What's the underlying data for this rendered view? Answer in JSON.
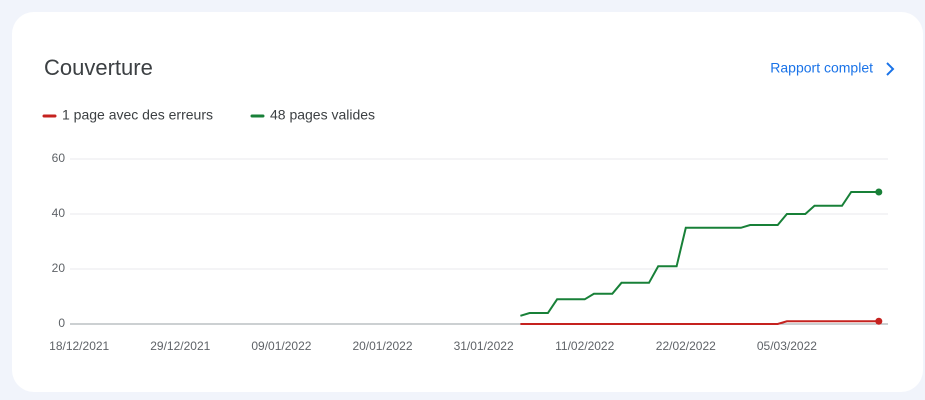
{
  "header": {
    "title": "Couverture",
    "link": "Rapport complet"
  },
  "chart_data": {
    "type": "line",
    "x": [
      "2022-02-04",
      "2022-02-05",
      "2022-02-06",
      "2022-02-07",
      "2022-02-08",
      "2022-02-09",
      "2022-02-10",
      "2022-02-11",
      "2022-02-12",
      "2022-02-13",
      "2022-02-14",
      "2022-02-15",
      "2022-02-16",
      "2022-02-17",
      "2022-02-18",
      "2022-02-19",
      "2022-02-20",
      "2022-02-21",
      "2022-02-22",
      "2022-02-23",
      "2022-02-24",
      "2022-02-25",
      "2022-02-26",
      "2022-02-27",
      "2022-02-28",
      "2022-03-01",
      "2022-03-02",
      "2022-03-03",
      "2022-03-04",
      "2022-03-05",
      "2022-03-06",
      "2022-03-07",
      "2022-03-08",
      "2022-03-09",
      "2022-03-10",
      "2022-03-11",
      "2022-03-12",
      "2022-03-13",
      "2022-03-14",
      "2022-03-15"
    ],
    "series": [
      {
        "name": "1 page avec des erreurs",
        "color": "#c5221f",
        "values": [
          0,
          0,
          0,
          0,
          0,
          0,
          0,
          0,
          0,
          0,
          0,
          0,
          0,
          0,
          0,
          0,
          0,
          0,
          0,
          0,
          0,
          0,
          0,
          0,
          0,
          0,
          0,
          0,
          0,
          1,
          1,
          1,
          1,
          1,
          1,
          1,
          1,
          1,
          1,
          1
        ]
      },
      {
        "name": "48 pages valides",
        "color": "#188038",
        "values": [
          3,
          4,
          4,
          4,
          9,
          9,
          9,
          9,
          11,
          11,
          11,
          15,
          15,
          15,
          15,
          21,
          21,
          21,
          35,
          35,
          35,
          35,
          35,
          35,
          35,
          36,
          36,
          36,
          36,
          40,
          40,
          40,
          43,
          43,
          43,
          43,
          48,
          48,
          48,
          48
        ]
      }
    ],
    "xlim": [
      "2021-12-17",
      "2022-03-16"
    ],
    "xticks": [
      {
        "value": "2021-12-18",
        "label": "18/12/2021"
      },
      {
        "value": "2021-12-29",
        "label": "29/12/2021"
      },
      {
        "value": "2022-01-09",
        "label": "09/01/2022"
      },
      {
        "value": "2022-01-20",
        "label": "20/01/2022"
      },
      {
        "value": "2022-01-31",
        "label": "31/01/2022"
      },
      {
        "value": "2022-02-11",
        "label": "11/02/2022"
      },
      {
        "value": "2022-02-22",
        "label": "22/02/2022"
      },
      {
        "value": "2022-03-05",
        "label": "05/03/2022"
      }
    ],
    "ylim": [
      0,
      60
    ],
    "yticks": [
      0,
      20,
      40,
      60
    ],
    "grid": true
  }
}
